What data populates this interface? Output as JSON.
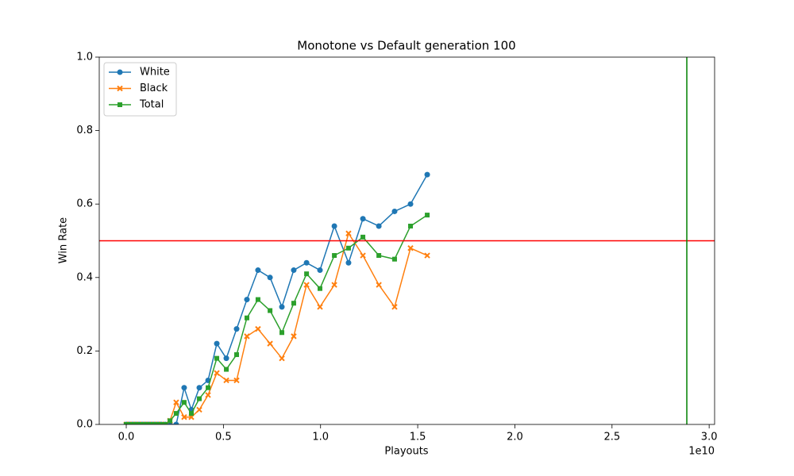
{
  "chart_data": {
    "type": "line",
    "title": "Monotone vs Default generation 100",
    "x_label": "Playouts",
    "y_label": "Win Rate",
    "x_offset_label": "1e10",
    "x": [
      0,
      163000000,
      327000000,
      490000000,
      654000000,
      817000000,
      981000000,
      1144000000,
      1308000000,
      1471000000,
      1635000000,
      1798000000,
      2000000000,
      2250000000,
      2570000000,
      2980000000,
      3350000000,
      3760000000,
      4210000000,
      4660000000,
      5150000000,
      5680000000,
      6210000000,
      6780000000,
      7400000000,
      8010000000,
      8620000000,
      9280000000,
      9970000000,
      10710000000,
      11440000000,
      12180000000,
      13000000000,
      13810000000,
      14630000000,
      15490000000
    ],
    "series": [
      {
        "name": "White",
        "color": "#1f77b4",
        "marker": "circle",
        "values": [
          0,
          0,
          0,
          0,
          0,
          0,
          0,
          0,
          0,
          0,
          0,
          0,
          0,
          0,
          0,
          0.1,
          0.04,
          0.1,
          0.12,
          0.22,
          0.18,
          0.26,
          0.34,
          0.42,
          0.4,
          0.32,
          0.42,
          0.44,
          0.42,
          0.54,
          0.44,
          0.56,
          0.54,
          0.58,
          0.6,
          0.68
        ]
      },
      {
        "name": "Black",
        "color": "#ff7f0e",
        "marker": "x",
        "values": [
          0,
          0,
          0,
          0,
          0,
          0,
          0,
          0,
          0,
          0,
          0,
          0,
          0,
          0.01,
          0.06,
          0.02,
          0.02,
          0.04,
          0.08,
          0.14,
          0.12,
          0.12,
          0.24,
          0.26,
          0.22,
          0.18,
          0.24,
          0.38,
          0.32,
          0.38,
          0.52,
          0.46,
          0.38,
          0.32,
          0.48,
          0.46
        ]
      },
      {
        "name": "Total",
        "color": "#2ca02c",
        "marker": "square",
        "values": [
          0,
          0,
          0,
          0,
          0,
          0,
          0,
          0,
          0,
          0,
          0,
          0,
          0,
          0.01,
          0.03,
          0.06,
          0.03,
          0.07,
          0.1,
          0.18,
          0.15,
          0.19,
          0.29,
          0.34,
          0.31,
          0.25,
          0.33,
          0.41,
          0.37,
          0.46,
          0.48,
          0.51,
          0.46,
          0.45,
          0.54,
          0.57
        ]
      }
    ],
    "reference_lines": [
      {
        "axis": "y",
        "value": 0.5,
        "color": "#ff0000"
      },
      {
        "axis": "x",
        "value": 28850000000,
        "color": "#008000"
      }
    ],
    "xlim": [
      -1390000000,
      30280000000
    ],
    "xticks": [
      {
        "value": 0,
        "label": "0.0"
      },
      {
        "value": 5000000000,
        "label": "0.5"
      },
      {
        "value": 10000000000,
        "label": "1.0"
      },
      {
        "value": 15000000000,
        "label": "1.5"
      },
      {
        "value": 20000000000,
        "label": "2.0"
      },
      {
        "value": 25000000000,
        "label": "2.5"
      },
      {
        "value": 30000000000,
        "label": "3.0"
      }
    ],
    "ylim": [
      0,
      1
    ],
    "yticks": [
      {
        "value": 0,
        "label": "0.0"
      },
      {
        "value": 0.2,
        "label": "0.2"
      },
      {
        "value": 0.4,
        "label": "0.4"
      },
      {
        "value": 0.6,
        "label": "0.6"
      },
      {
        "value": 0.8,
        "label": "0.8"
      },
      {
        "value": 1,
        "label": "1.0"
      }
    ],
    "legend": "upper left",
    "grid": false
  }
}
